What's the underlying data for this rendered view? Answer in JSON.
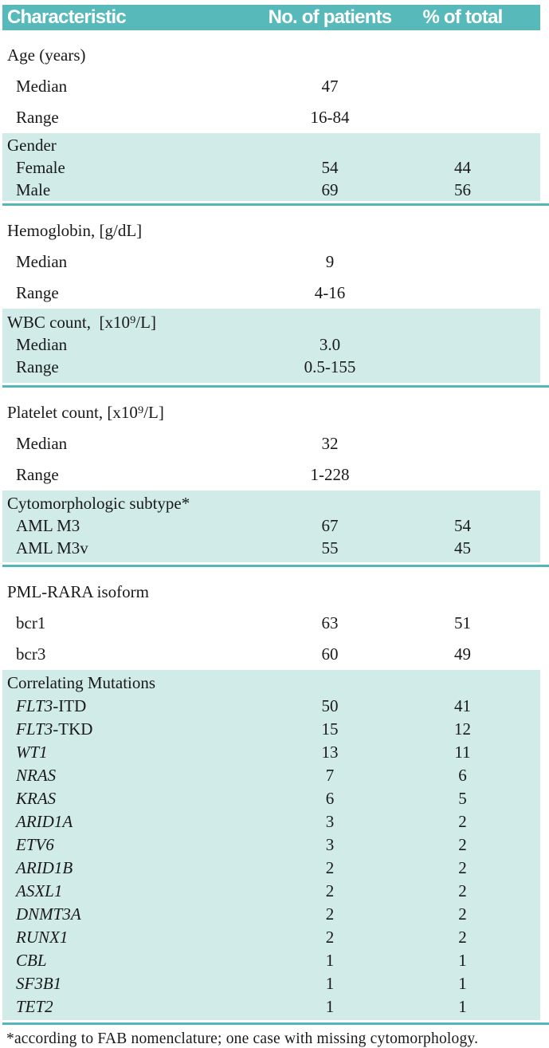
{
  "colors": {
    "header_bg": "#57b9ba",
    "header_text": "#ffffff",
    "band_bg": "#d0ebe8",
    "rule": "#55b6b8",
    "body_text": "#191919"
  },
  "table": {
    "header": {
      "characteristic": "Characteristic",
      "patients": "No. of patients",
      "total": "% of total"
    },
    "sections": [
      {
        "title": "Age (years)",
        "shaded": false,
        "rows": [
          {
            "label": "Median",
            "n": "47",
            "pct": ""
          },
          {
            "label": "Range",
            "n": "16-84",
            "pct": ""
          }
        ]
      },
      {
        "title": "Gender",
        "shaded": true,
        "rows": [
          {
            "label": "Female",
            "n": "54",
            "pct": "44"
          },
          {
            "label": "Male",
            "n": "69",
            "pct": "56"
          }
        ]
      },
      {
        "title": "Hemoglobin, [g/dL]",
        "shaded": false,
        "rows": [
          {
            "label": "Median",
            "n": "9",
            "pct": ""
          },
          {
            "label": "Range",
            "n": "4-16",
            "pct": ""
          }
        ]
      },
      {
        "title": "WBC count,  [x10⁹/L]",
        "shaded": true,
        "rows": [
          {
            "label": "Median",
            "n": "3.0",
            "pct": ""
          },
          {
            "label": "Range",
            "n": "0.5-155",
            "pct": ""
          }
        ]
      },
      {
        "title": "Platelet count, [x10⁹/L]",
        "shaded": false,
        "rows": [
          {
            "label": "Median",
            "n": "32",
            "pct": ""
          },
          {
            "label": "Range",
            "n": "1-228",
            "pct": ""
          }
        ]
      },
      {
        "title": "Cytomorphologic subtype*",
        "shaded": true,
        "rows": [
          {
            "label": "AML M3",
            "n": "67",
            "pct": "54"
          },
          {
            "label": "AML M3v",
            "n": "55",
            "pct": "45"
          }
        ]
      },
      {
        "title": "PML-RARA isoform",
        "shaded": false,
        "rows": [
          {
            "label": "bcr1",
            "n": "63",
            "pct": "51"
          },
          {
            "label": "bcr3",
            "n": "60",
            "pct": "49"
          }
        ]
      },
      {
        "title": "Correlating Mutations",
        "shaded": true,
        "rows": [
          {
            "gi": "FLT3",
            "gr": "-ITD",
            "n": "50",
            "pct": "41"
          },
          {
            "gi": "FLT3",
            "gr": "-TKD",
            "n": "15",
            "pct": "12"
          },
          {
            "gi": "WT1",
            "gr": "",
            "n": "13",
            "pct": "11"
          },
          {
            "gi": "NRAS",
            "gr": "",
            "n": "7",
            "pct": "6"
          },
          {
            "gi": "KRAS",
            "gr": "",
            "n": "6",
            "pct": "5"
          },
          {
            "gi": "ARID1A",
            "gr": "",
            "n": "3",
            "pct": "2"
          },
          {
            "gi": "ETV6",
            "gr": "",
            "n": "3",
            "pct": "2"
          },
          {
            "gi": "ARID1B",
            "gr": "",
            "n": "2",
            "pct": "2"
          },
          {
            "gi": "ASXL1",
            "gr": "",
            "n": "2",
            "pct": "2"
          },
          {
            "gi": "DNMT3A",
            "gr": "",
            "n": "2",
            "pct": "2"
          },
          {
            "gi": "RUNX1",
            "gr": "",
            "n": "2",
            "pct": "2"
          },
          {
            "gi": "CBL",
            "gr": "",
            "n": "1",
            "pct": "1"
          },
          {
            "gi": "SF3B1",
            "gr": "",
            "n": "1",
            "pct": "1"
          },
          {
            "gi": "TET2",
            "gr": "",
            "n": "1",
            "pct": "1"
          }
        ]
      }
    ],
    "footnote": "*according to FAB nomenclature; one case with missing cytomorphology."
  }
}
